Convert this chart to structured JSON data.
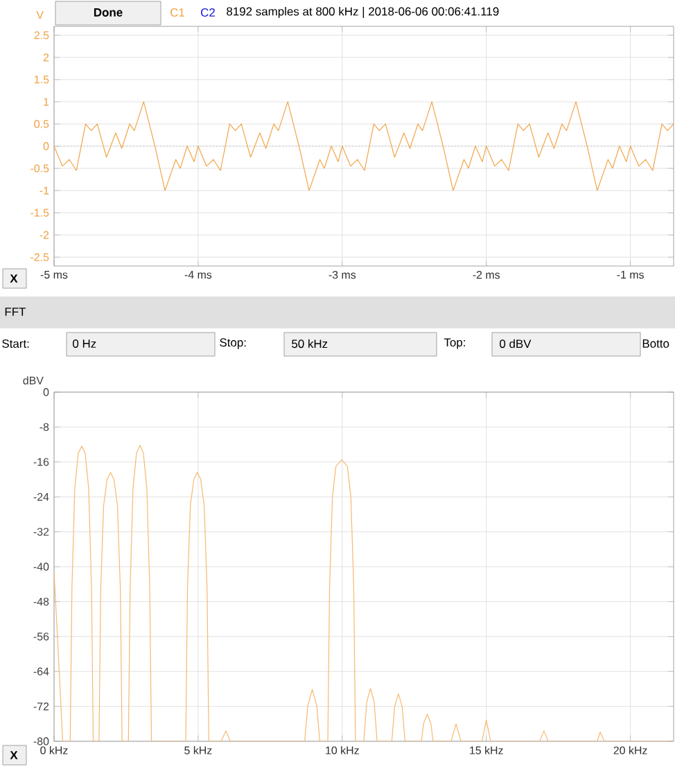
{
  "chart_data": [
    {
      "type": "line",
      "title": "8192 samples at 800 kHz | 2018-06-06 00:06:41.119",
      "ylabel": "V",
      "annotations": [
        "Done",
        "C1",
        "C2",
        "X"
      ],
      "xlim": [
        -5,
        -0.7
      ],
      "ylim": [
        -2.7,
        2.7
      ],
      "xticks": [
        {
          "value": -5,
          "label": "-5 ms"
        },
        {
          "value": -4,
          "label": "-4 ms"
        },
        {
          "value": -3,
          "label": "-3 ms"
        },
        {
          "value": -2,
          "label": "-2 ms"
        },
        {
          "value": -1,
          "label": "-1 ms"
        }
      ],
      "yticks": [
        2.5,
        2,
        1.5,
        1,
        0.5,
        0,
        -0.5,
        -1,
        -1.5,
        -2,
        -2.5
      ],
      "grid": true,
      "ref_lines": [
        {
          "axis": "y",
          "value": 0,
          "line_style": "dotted",
          "color": "#808080"
        }
      ],
      "series": [
        {
          "color": "#f2a54a",
          "x": [
            -5,
            -4.942,
            -4.894,
            -4.845,
            -4.781,
            -4.742,
            -4.7,
            -4.636,
            -4.572,
            -4.53,
            -4.475,
            -4.443,
            -4.378,
            -4.3,
            -4.23,
            -4.155,
            -4.124,
            -4.076,
            -4.028,
            -4,
            -3.942,
            -3.894,
            -3.845,
            -3.781,
            -3.742,
            -3.7,
            -3.636,
            -3.572,
            -3.53,
            -3.475,
            -3.443,
            -3.378,
            -3.3,
            -3.23,
            -3.155,
            -3.124,
            -3.076,
            -3.028,
            -3,
            -2.942,
            -2.894,
            -2.845,
            -2.781,
            -2.742,
            -2.7,
            -2.636,
            -2.572,
            -2.53,
            -2.475,
            -2.443,
            -2.378,
            -2.3,
            -2.23,
            -2.155,
            -2.124,
            -2.076,
            -2.028,
            -2,
            -1.942,
            -1.894,
            -1.845,
            -1.781,
            -1.742,
            -1.7,
            -1.636,
            -1.572,
            -1.53,
            -1.475,
            -1.443,
            -1.378,
            -1.3,
            -1.23,
            -1.155,
            -1.124,
            -1.076,
            -1.028,
            -1,
            -0.942,
            -0.894,
            -0.845,
            -0.781,
            -0.742,
            -0.7
          ],
          "values": [
            0,
            -0.45,
            -0.3,
            -0.55,
            0.5,
            0.35,
            0.5,
            -0.25,
            0.3,
            -0.05,
            0.5,
            0.35,
            1.0,
            0.0,
            -1.0,
            -0.3,
            -0.5,
            0.0,
            -0.35,
            0,
            -0.45,
            -0.3,
            -0.55,
            0.5,
            0.35,
            0.5,
            -0.25,
            0.3,
            -0.05,
            0.5,
            0.35,
            1.0,
            0.0,
            -1.0,
            -0.3,
            -0.5,
            0.0,
            -0.35,
            0,
            -0.45,
            -0.3,
            -0.55,
            0.5,
            0.35,
            0.5,
            -0.25,
            0.3,
            -0.05,
            0.5,
            0.35,
            1.0,
            0.0,
            -1.0,
            -0.3,
            -0.5,
            0.0,
            -0.35,
            0,
            -0.45,
            -0.3,
            -0.55,
            0.5,
            0.35,
            0.5,
            -0.25,
            0.3,
            -0.05,
            0.5,
            0.35,
            1.0,
            0.0,
            -1.0,
            -0.3,
            -0.5,
            0.0,
            -0.35,
            0,
            -0.45,
            -0.3,
            -0.55,
            0.5,
            0.35,
            0.5
          ]
        }
      ]
    },
    {
      "type": "line",
      "title": "FFT",
      "ylabel": "dBV",
      "annotations": [
        "Start:",
        "0 Hz",
        "Stop:",
        "50 kHz",
        "Top:",
        "0 dBV",
        "Botto",
        "X"
      ],
      "xlim": [
        0,
        21.5
      ],
      "ylim": [
        -80,
        0
      ],
      "xticks": [
        {
          "value": 0,
          "label": "0 kHz"
        },
        {
          "value": 5,
          "label": "5 kHz"
        },
        {
          "value": 10,
          "label": "10 kHz"
        },
        {
          "value": 15,
          "label": "15 kHz"
        },
        {
          "value": 20,
          "label": "20 kHz"
        }
      ],
      "yticks": [
        0,
        -8,
        -16,
        -24,
        -32,
        -40,
        -48,
        -56,
        -64,
        -72,
        -80
      ],
      "grid": true,
      "series": [
        {
          "color": "#f7b870",
          "x": [
            0,
            0.15,
            0.3,
            0.5,
            0.56,
            0.62,
            0.72,
            0.84,
            0.96,
            1.08,
            1.2,
            1.3,
            1.36,
            1.56,
            1.62,
            1.72,
            1.84,
            1.96,
            2.08,
            2.2,
            2.3,
            2.36,
            2.58,
            2.64,
            2.74,
            2.86,
            2.98,
            3.1,
            3.22,
            3.32,
            3.38,
            4.57,
            4.63,
            4.73,
            4.85,
            4.97,
            5.09,
            5.21,
            5.31,
            5.37,
            5.8,
            5.96,
            6.12,
            8.7,
            8.8,
            8.96,
            9.12,
            9.22,
            9.5,
            9.56,
            9.66,
            9.78,
            9.98,
            10.18,
            10.3,
            10.4,
            10.46,
            10.75,
            10.85,
            10.98,
            11.11,
            11.21,
            11.72,
            11.82,
            11.95,
            12.08,
            12.18,
            12.75,
            12.82,
            12.95,
            13.08,
            13.15,
            13.78,
            13.95,
            14.12,
            14.85,
            15.0,
            15.15,
            16.85,
            17.0,
            17.15,
            18.85,
            18.95,
            19.1,
            21.5
          ],
          "values": [
            -41.3,
            -60,
            -80,
            -80,
            -80,
            -45,
            -22,
            -14,
            -12.4,
            -14,
            -22,
            -45,
            -80,
            -80,
            -45,
            -26,
            -20,
            -18.4,
            -20,
            -26,
            -45,
            -80,
            -80,
            -45,
            -22,
            -14,
            -12.2,
            -14,
            -22,
            -45,
            -80,
            -80,
            -45,
            -26,
            -20,
            -18.4,
            -20,
            -26,
            -45,
            -80,
            -80,
            -77.6,
            -80,
            -80,
            -72,
            -68.1,
            -72,
            -80,
            -80,
            -45,
            -24,
            -17,
            -15.5,
            -17,
            -24,
            -45,
            -80,
            -80,
            -71,
            -67.9,
            -71,
            -80,
            -80,
            -72,
            -69.1,
            -72,
            -80,
            -80,
            -76,
            -73.8,
            -76,
            -80,
            -80,
            -76.0,
            -80,
            -80,
            -75.1,
            -80,
            -80,
            -77.6,
            -80,
            -80,
            -77.9,
            -80,
            -80
          ]
        }
      ]
    }
  ]
}
